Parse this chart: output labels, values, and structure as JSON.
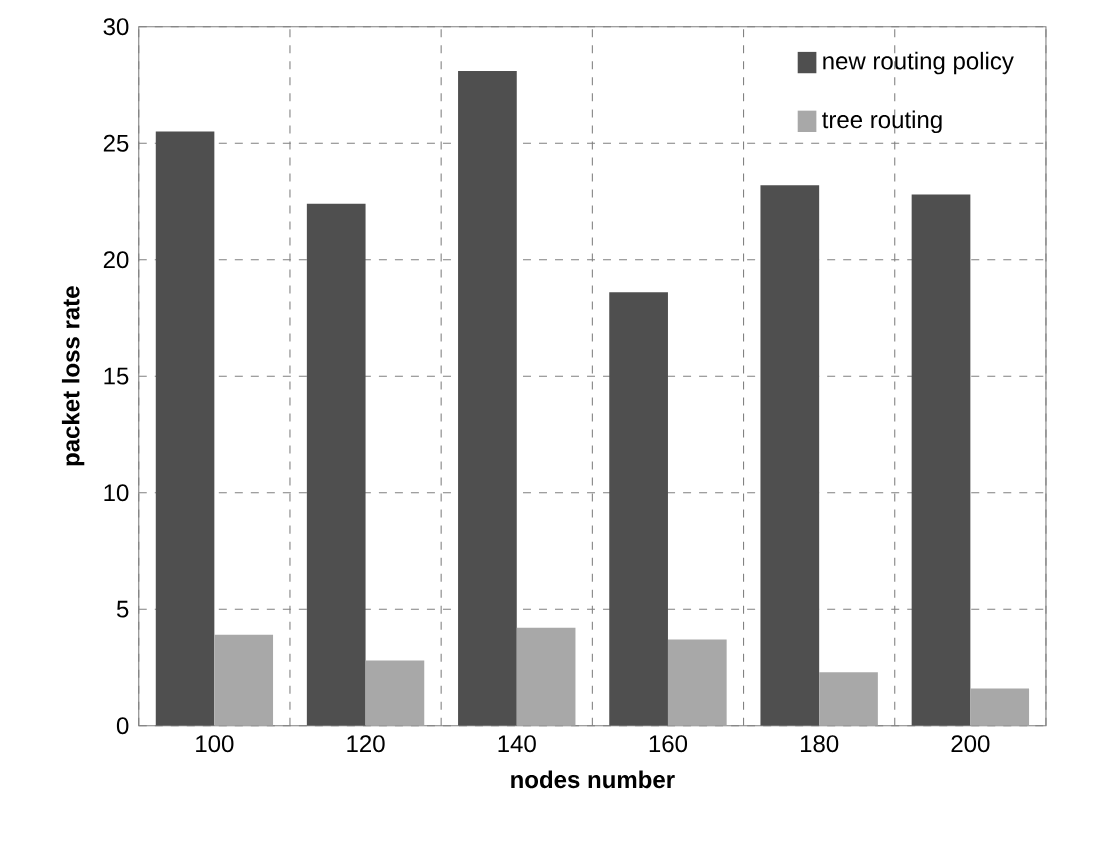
{
  "chart_data": {
    "type": "bar",
    "xlabel": "nodes number",
    "ylabel": "packet loss rate",
    "categories": [
      "100",
      "120",
      "140",
      "160",
      "180",
      "200"
    ],
    "series": [
      {
        "name": "new routing policy",
        "color": "#4f4f4f",
        "values": [
          25.5,
          22.4,
          28.1,
          18.6,
          23.2,
          22.8
        ]
      },
      {
        "name": "tree routing",
        "color": "#a8a8a8",
        "values": [
          3.9,
          2.8,
          4.2,
          3.7,
          2.3,
          1.6
        ]
      }
    ],
    "ylim": [
      0,
      30
    ],
    "yticks": [
      0,
      5,
      10,
      15,
      20,
      25,
      30
    ],
    "grid": true,
    "legend": "top right"
  }
}
